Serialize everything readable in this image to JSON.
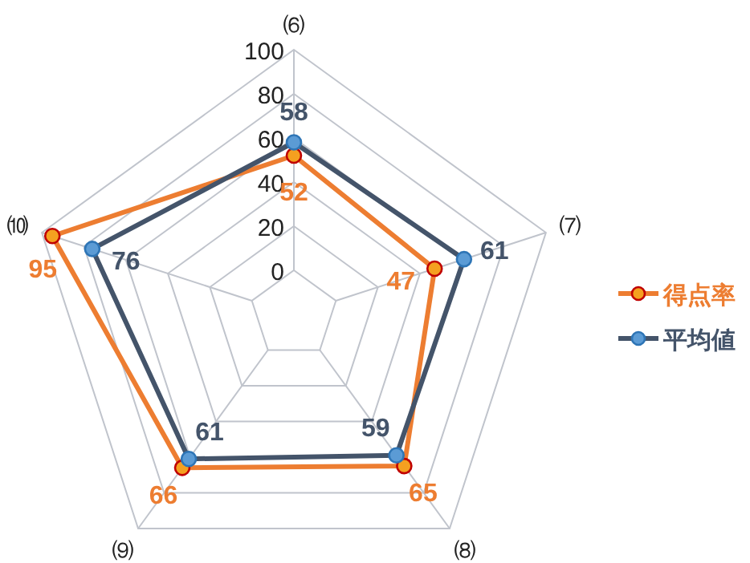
{
  "chart_data": {
    "type": "radar",
    "categories": [
      "⑹",
      "⑺",
      "⑻",
      "⑼",
      "⑽"
    ],
    "series": [
      {
        "name": "得点率",
        "color": "#ed7d31",
        "values": [
          52,
          47,
          65,
          66,
          95
        ]
      },
      {
        "name": "平均値",
        "color": "#44546a",
        "values": [
          58,
          61,
          59,
          61,
          76
        ]
      }
    ],
    "ylim": [
      -20,
      100
    ],
    "yticks": [
      0,
      20,
      40,
      60,
      80,
      100
    ],
    "grid": true,
    "legend": "right",
    "marker": "circle",
    "data_labels": true
  }
}
